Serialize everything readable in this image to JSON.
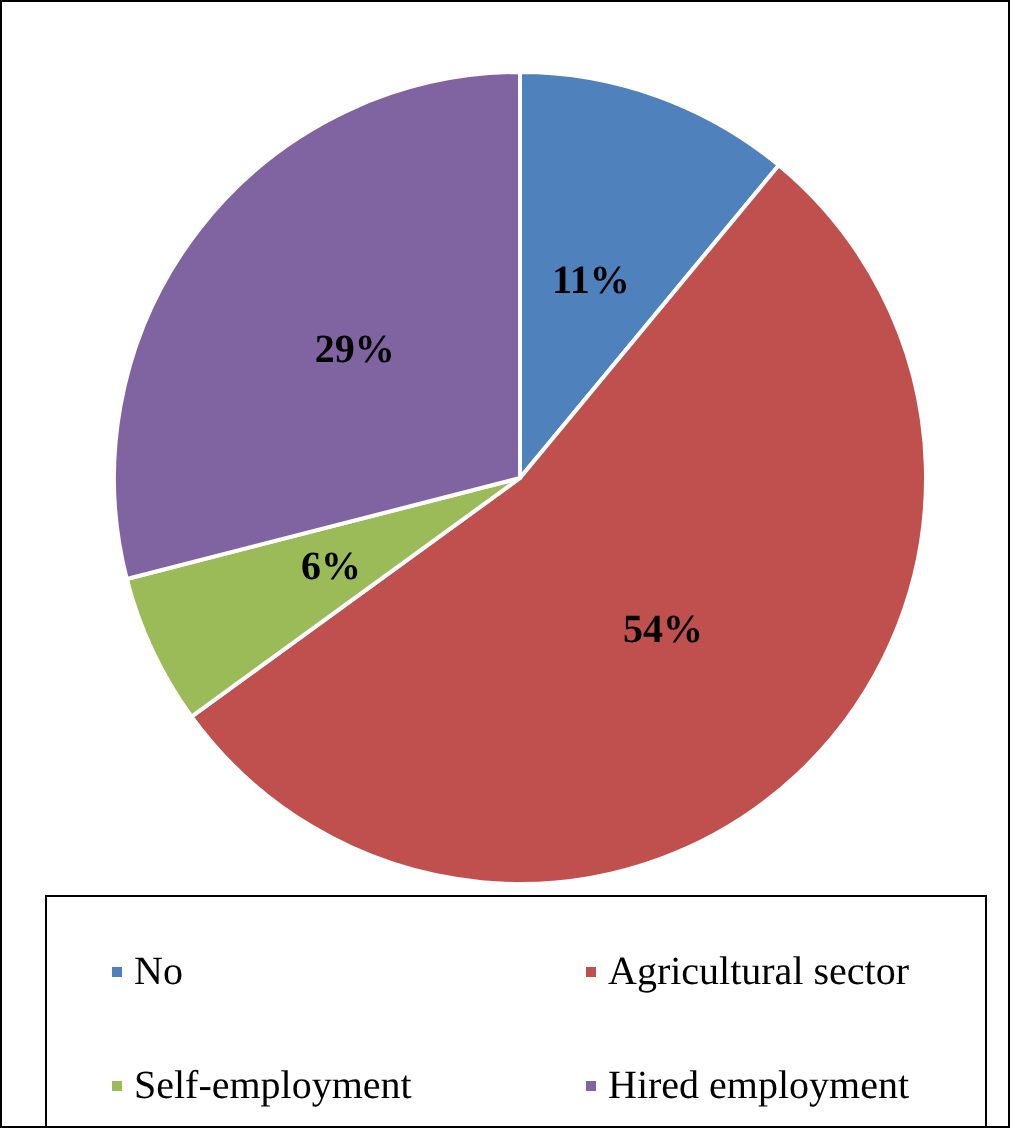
{
  "chart_data": {
    "type": "pie",
    "categories": [
      "No",
      "Agricultural sector",
      "Self-employment",
      "Hired employment"
    ],
    "values": [
      11,
      54,
      6,
      29
    ],
    "colors": [
      "#4f81bd",
      "#c0504d",
      "#9bbb59",
      "#8064a2"
    ],
    "value_labels": [
      "11%",
      "54%",
      "6%",
      "29%"
    ],
    "legend": "bottom"
  }
}
